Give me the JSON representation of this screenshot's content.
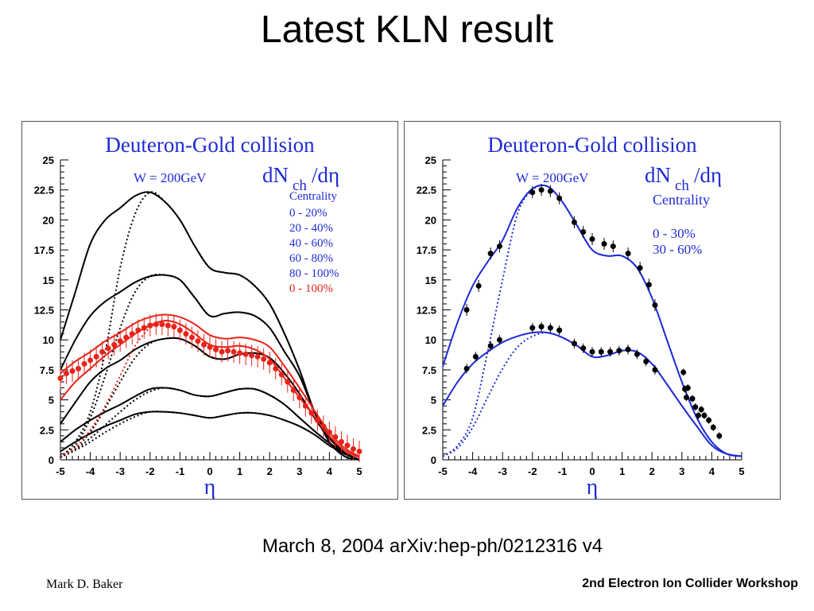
{
  "slide": {
    "title": "Latest KLN result",
    "subtitle": "March 8, 2004 arXiv:hep-ph/0212316 v4",
    "footer_left": "Mark D. Baker",
    "footer_right": "2nd Electron Ion Collider Workshop"
  },
  "colors": {
    "blue": "#1f2bd6",
    "red": "#e8231a",
    "black": "#000000"
  },
  "chart_data": [
    {
      "type": "line",
      "title": "Deuteron-Gold collision",
      "energy_label": "W = 200GeV",
      "yaxis_label_main": "dN",
      "yaxis_label_sub": "ch",
      "yaxis_label_tail": "/dη",
      "xlabel": "η",
      "xlim": [
        -5,
        5
      ],
      "ylim": [
        0,
        25
      ],
      "xticks": [
        "-5",
        "-4",
        "-3",
        "-2",
        "-1",
        "0",
        "1",
        "2",
        "3",
        "4",
        "5"
      ],
      "yticks": [
        "0",
        "2.5",
        "5",
        "7.5",
        "10",
        "12.5",
        "15",
        "17.5",
        "20",
        "22.5",
        "25"
      ],
      "legend_title": "Centrality",
      "legend": [
        {
          "label": "0 - 20%",
          "color": "#1f2bd6"
        },
        {
          "label": "20 - 40%",
          "color": "#1f2bd6"
        },
        {
          "label": "40 - 60%",
          "color": "#1f2bd6"
        },
        {
          "label": "60 - 80%",
          "color": "#1f2bd6"
        },
        {
          "label": "80 - 100%",
          "color": "#1f2bd6"
        },
        {
          "label": "0 - 100%",
          "color": "#e8231a"
        }
      ],
      "x": [
        -5,
        -4.5,
        -4,
        -3.5,
        -3,
        -2.5,
        -2,
        -1.5,
        -1,
        -0.5,
        0,
        0.5,
        1,
        1.5,
        2,
        2.5,
        3,
        3.5,
        4,
        4.5,
        5
      ],
      "series": [
        {
          "color": "#000000",
          "dash": false,
          "values": [
            10,
            14,
            18,
            20,
            21,
            22,
            22.3,
            21.5,
            20,
            17.8,
            16,
            15.6,
            15.4,
            14.5,
            13,
            10.5,
            7.5,
            4,
            1.5,
            0.3,
            0
          ]
        },
        {
          "color": "#000000",
          "dash": false,
          "values": [
            7.5,
            10,
            12,
            13.2,
            14,
            14.8,
            15.3,
            15.4,
            15,
            13.5,
            12,
            12.2,
            12.3,
            12,
            11,
            9,
            7,
            4,
            2,
            0.6,
            0
          ]
        },
        {
          "color": "#000000",
          "dash": false,
          "values": [
            3,
            4.8,
            6.5,
            7.6,
            8.3,
            9.2,
            9.8,
            10.1,
            10.1,
            9.5,
            8.6,
            8.4,
            8.8,
            8.9,
            8.5,
            7.2,
            5.5,
            3.5,
            1.8,
            0.6,
            0
          ]
        },
        {
          "color": "#000000",
          "dash": false,
          "values": [
            1.5,
            2.5,
            3.3,
            4,
            4.6,
            5.3,
            5.9,
            6,
            5.8,
            5.4,
            5.3,
            5.6,
            5.9,
            5.9,
            5.4,
            4.6,
            3.5,
            2.4,
            1.4,
            0.6,
            0
          ]
        },
        {
          "color": "#000000",
          "dash": false,
          "values": [
            0.7,
            1.5,
            2.2,
            2.8,
            3.3,
            3.8,
            4,
            4,
            3.9,
            3.7,
            3.5,
            3.7,
            3.9,
            3.9,
            3.7,
            3.3,
            2.8,
            2.1,
            1.2,
            0.5,
            0
          ]
        },
        {
          "color": "#000000",
          "dash": true,
          "values": [
            0.2,
            1.5,
            4,
            9,
            16,
            20.5,
            22.3,
            21.5,
            20,
            17.8,
            16,
            15.6,
            15.4,
            14.5,
            13,
            10.5,
            7.5,
            4,
            1.5,
            0.3,
            0
          ]
        },
        {
          "color": "#000000",
          "dash": true,
          "values": [
            0.3,
            1.2,
            3.5,
            7,
            11,
            14,
            15.3,
            15.4,
            15,
            13.5,
            12,
            12.2,
            12.3,
            12,
            11,
            9,
            7,
            4,
            2,
            0.6,
            0
          ]
        },
        {
          "color": "#000000",
          "dash": true,
          "values": [
            0.3,
            1,
            2.3,
            4.3,
            6.5,
            8.5,
            9.7,
            10.1,
            10.1,
            9.5,
            8.6,
            8.4,
            8.8,
            8.9,
            8.5,
            7.2,
            5.5,
            3.5,
            1.8,
            0.6,
            0
          ]
        },
        {
          "color": "#000000",
          "dash": true,
          "values": [
            0.3,
            0.9,
            1.8,
            2.9,
            4,
            5,
            5.7,
            6,
            5.8,
            5.4,
            5.3,
            5.6,
            5.9,
            5.9,
            5.4,
            4.6,
            3.5,
            2.4,
            1.4,
            0.6,
            0
          ]
        },
        {
          "color": "#000000",
          "dash": true,
          "values": [
            0.2,
            0.8,
            1.5,
            2.3,
            3,
            3.6,
            4,
            4,
            3.9,
            3.7,
            3.5,
            3.7,
            3.9,
            3.9,
            3.7,
            3.3,
            2.8,
            2.1,
            1.2,
            0.5,
            0
          ]
        },
        {
          "color": "#e8231a",
          "dash": false,
          "values": [
            5,
            6.5,
            7.6,
            8.7,
            9.6,
            10.5,
            11.2,
            11.6,
            11.3,
            10.5,
            9.6,
            9.4,
            9.5,
            9.2,
            8.4,
            6.8,
            5.2,
            3.6,
            2,
            0.8,
            0.2
          ]
        },
        {
          "color": "#e8231a",
          "dash": false,
          "values": [
            7.2,
            8.2,
            9,
            9.9,
            10.6,
            11.4,
            11.9,
            12.1,
            11.9,
            11.3,
            10.4,
            10.1,
            10.2,
            10,
            9.4,
            7.8,
            6,
            4.1,
            2.3,
            1,
            0.3
          ]
        },
        {
          "color": "#e8231a",
          "dash": true,
          "values": [
            0.3,
            1,
            2.5,
            4.5,
            7,
            9.5,
            11,
            11.6,
            11.3,
            10.5,
            9.6,
            9.4,
            9.5,
            9.2,
            8.4,
            6.8,
            5.2,
            3.6,
            2,
            0.8,
            0.2
          ]
        }
      ],
      "points": {
        "color": "#e8231a",
        "x": [
          -5,
          -4.8,
          -4.6,
          -4.4,
          -4.2,
          -4,
          -3.8,
          -3.6,
          -3.4,
          -3.2,
          -3,
          -2.8,
          -2.6,
          -2.4,
          -2.2,
          -2,
          -1.8,
          -1.6,
          -1.4,
          -1.2,
          -1,
          -0.8,
          -0.6,
          -0.4,
          -0.2,
          0,
          0.2,
          0.4,
          0.6,
          0.8,
          1,
          1.2,
          1.4,
          1.6,
          1.8,
          2,
          2.2,
          2.4,
          2.6,
          2.8,
          3,
          3.2,
          3.4,
          3.6,
          3.8,
          4,
          4.2,
          4.4,
          4.6,
          4.8,
          5
        ],
        "y": [
          6.8,
          7.2,
          7.4,
          7.6,
          8,
          8.3,
          8.6,
          9,
          9.3,
          9.6,
          9.9,
          10.2,
          10.5,
          10.8,
          11,
          11.2,
          11.3,
          11.3,
          11.2,
          11.1,
          10.8,
          10.5,
          10.2,
          9.9,
          9.6,
          9.4,
          9.2,
          9,
          9.1,
          9,
          8.9,
          8.8,
          8.7,
          8.6,
          8.4,
          8.1,
          7.6,
          7.1,
          6.5,
          5.8,
          5.2,
          4.5,
          3.9,
          3.3,
          2.8,
          2.3,
          1.9,
          1.5,
          1.2,
          0.9,
          0.7
        ],
        "err": 0.9
      }
    },
    {
      "type": "line",
      "title": "Deuteron-Gold collision",
      "energy_label": "W = 200GeV",
      "yaxis_label_main": "dN",
      "yaxis_label_sub": "ch",
      "yaxis_label_tail": "/dη",
      "xlabel": "η",
      "xlim": [
        -5,
        5
      ],
      "ylim": [
        0,
        25
      ],
      "xticks": [
        "-5",
        "-4",
        "-3",
        "-2",
        "-1",
        "0",
        "1",
        "2",
        "3",
        "4",
        "5"
      ],
      "yticks": [
        "0",
        "2.5",
        "5",
        "7.5",
        "10",
        "12.5",
        "15",
        "17.5",
        "20",
        "22.5",
        "25"
      ],
      "legend_title": "Centrality",
      "legend": [
        {
          "label": "0 - 30%",
          "color": "#1f2bd6"
        },
        {
          "label": "30 - 60%",
          "color": "#1f2bd6"
        }
      ],
      "x": [
        -5,
        -4.5,
        -4,
        -3.5,
        -3,
        -2.5,
        -2,
        -1.5,
        -1,
        -0.5,
        0,
        0.5,
        1,
        1.5,
        2,
        2.5,
        3,
        3.5,
        4,
        4.5,
        5
      ],
      "series": [
        {
          "color": "#1f2bd6",
          "dash": false,
          "values": [
            7.8,
            11.5,
            14.5,
            16.5,
            18.3,
            21,
            22.6,
            22.8,
            21.5,
            19.5,
            17.5,
            17,
            17,
            16,
            13.5,
            10,
            6.5,
            3.5,
            1.5,
            0.5,
            0.3
          ]
        },
        {
          "color": "#1f2bd6",
          "dash": false,
          "values": [
            4.5,
            6.5,
            8,
            9,
            9.8,
            10.3,
            10.6,
            10.6,
            10.2,
            9.5,
            8.6,
            8.7,
            9.1,
            9,
            8,
            6.3,
            4.5,
            2.8,
            1.2,
            0.5,
            0.3
          ]
        },
        {
          "color": "#1f2bd6",
          "dash": true,
          "values": [
            0.3,
            1.2,
            3.5,
            9,
            15,
            20.5,
            22.5,
            22.8,
            21.5,
            19.5,
            17.5,
            17,
            17,
            16,
            13.5,
            10,
            6.5,
            3.5,
            1.5,
            0.5,
            0.3
          ]
        },
        {
          "color": "#1f2bd6",
          "dash": true,
          "values": [
            0.3,
            1,
            2.7,
            5.2,
            7.6,
            9.4,
            10.3,
            10.6,
            10.2,
            9.5,
            8.6,
            8.7,
            9.1,
            9,
            8,
            6.3,
            4.5,
            2.8,
            1.2,
            0.5,
            0.3
          ]
        }
      ],
      "points_sets": [
        {
          "color": "#000000",
          "err": 0.5,
          "x": [
            -4.2,
            -3.8,
            -3.4,
            -3.1,
            -2,
            -1.7,
            -1.4,
            -1.1,
            -0.6,
            -0.3,
            0,
            0.4,
            0.7,
            1.2,
            1.6,
            1.9,
            2.1
          ],
          "y": [
            12.5,
            14.5,
            17.2,
            17.8,
            22.3,
            22.5,
            22.4,
            21.8,
            19.8,
            19,
            18.4,
            18,
            17.8,
            17.2,
            16,
            14.6,
            12.9
          ]
        },
        {
          "color": "#000000",
          "err": 0.4,
          "x": [
            -4.2,
            -3.9,
            -3.4,
            -3.1,
            -2,
            -1.7,
            -1.4,
            -1.1,
            -0.6,
            -0.3,
            0,
            0.3,
            0.6,
            0.9,
            1.2,
            1.5,
            1.8,
            2.1
          ],
          "y": [
            7.6,
            8.6,
            9.5,
            10,
            11,
            11.1,
            11,
            10.8,
            9.7,
            9.3,
            9,
            9,
            9,
            9.1,
            9.2,
            8.8,
            8.2,
            7.5
          ]
        },
        {
          "color": "#000000",
          "err": 0.3,
          "x": [
            3.05,
            3.1,
            3.15,
            3.2,
            3.35,
            3.45,
            3.55,
            3.65,
            3.75,
            3.9,
            4.05,
            4.25
          ],
          "y": [
            7.3,
            5.9,
            5.2,
            6,
            5.1,
            4.4,
            3.7,
            4.2,
            3.7,
            3.3,
            2.7,
            2
          ]
        }
      ]
    }
  ]
}
